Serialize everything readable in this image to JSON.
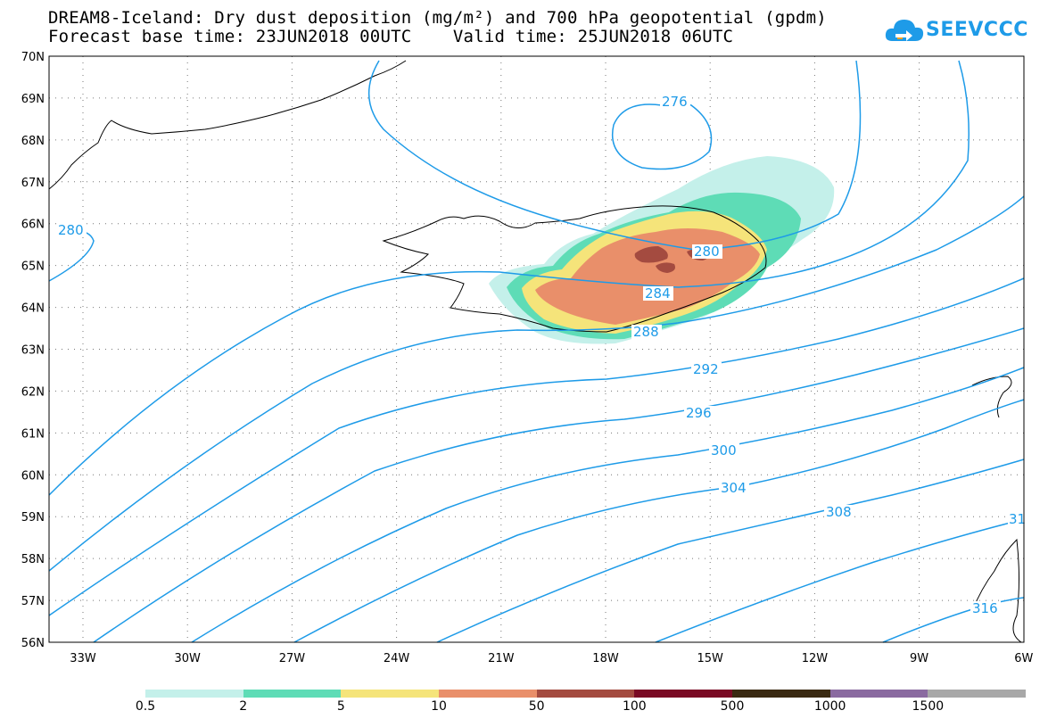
{
  "title": {
    "line1": "DREAM8-Iceland: Dry dust deposition (mg/m²) and 700 hPa geopotential (gpdm)",
    "line2": "Forecast base time: 23JUN2018 00UTC    Valid time: 25JUN2018 06UTC"
  },
  "logo": {
    "text": "SEEVCCC",
    "icon": "cloud-arrow-icon",
    "color": "#1e9be8"
  },
  "chart_data": {
    "type": "map",
    "lat_ticks": [
      "70N",
      "69N",
      "68N",
      "67N",
      "66N",
      "65N",
      "64N",
      "63N",
      "62N",
      "61N",
      "60N",
      "59N",
      "58N",
      "57N",
      "56N"
    ],
    "lon_ticks": [
      "33W",
      "30W",
      "27W",
      "24W",
      "21W",
      "18W",
      "15W",
      "12W",
      "9W",
      "6W"
    ],
    "grid": true,
    "contour_color": "#1e9be8",
    "contour_labels": [
      "276",
      "280",
      "280",
      "284",
      "288",
      "292",
      "296",
      "300",
      "304",
      "308",
      "31",
      "316"
    ],
    "legend": {
      "labels": [
        "0.5",
        "2",
        "5",
        "10",
        "50",
        "100",
        "500",
        "1000",
        "1500"
      ],
      "colors": [
        "#c4f0ea",
        "#5edcb6",
        "#f5e47a",
        "#e98f6a",
        "#a44b40",
        "#7a0a24",
        "#3a2a12",
        "#8a6aa0",
        "#a8a8a8"
      ]
    }
  }
}
